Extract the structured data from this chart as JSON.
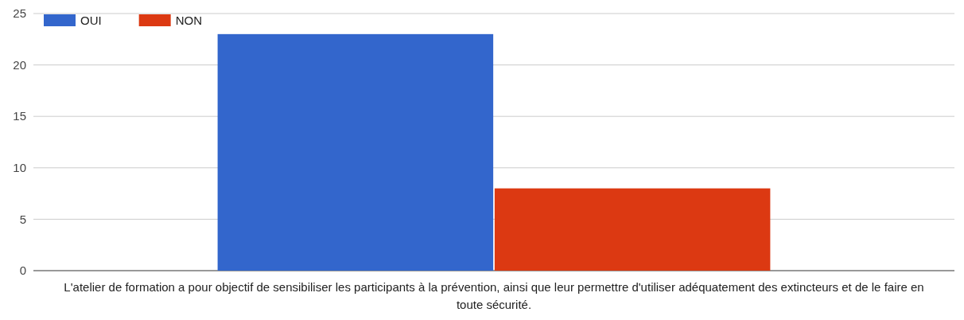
{
  "chart_data": {
    "type": "bar",
    "categories": [
      "L'atelier de formation a pour objectif de sensibiliser les participants à la prévention, ainsi que leur permettre d'utiliser adéquatement des extincteurs et de le faire en toute sécurité."
    ],
    "series": [
      {
        "name": "OUI",
        "color": "#3366cc",
        "values": [
          23
        ]
      },
      {
        "name": "NON",
        "color": "#dc3912",
        "values": [
          8
        ]
      }
    ],
    "ylim": [
      0,
      25
    ],
    "yticks": [
      0,
      5,
      10,
      15,
      20,
      25
    ],
    "grid": "y",
    "legend": "top left"
  }
}
